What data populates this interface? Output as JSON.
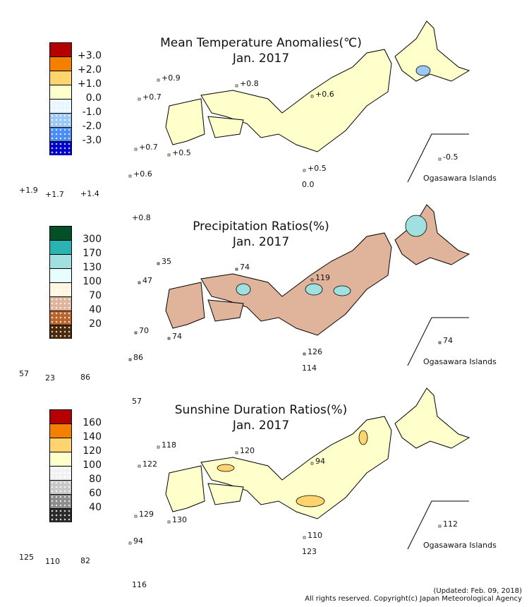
{
  "panels": [
    {
      "title": "Mean Temperature Anomalies(℃)",
      "subtitle": "Jan. 2017",
      "legend_colors": [
        "#b40000",
        "#f57f00",
        "#ffd36e",
        "#ffffcc",
        "#e8f6ff",
        "#9cc8f5",
        "#4a8cf5",
        "#0000cc"
      ],
      "legend_labels": [
        "+3.0",
        "+2.0",
        "+1.0",
        "0.0",
        "-1.0",
        "-2.0",
        "-3.0"
      ],
      "base_fill": "#ffffcc",
      "accent_fill": "#9cc8f5",
      "stations": [
        "+0.9",
        "+0.8",
        "+0.7",
        "+0.6",
        "+0.7",
        "+0.5",
        "+0.5",
        "0.0",
        "+1.9",
        "+1.7",
        "+1.4",
        "+0.6",
        "+0.8",
        "-0.5"
      ],
      "inset_label": "Ogasawara Islands"
    },
    {
      "title": "Precipitation Ratios(%)",
      "subtitle": "Jan. 2017",
      "legend_colors": [
        "#035028",
        "#2ab3b3",
        "#a0e0e0",
        "#e8fdfd",
        "#fff6e0",
        "#e0b49a",
        "#b8642c",
        "#4a2a0a"
      ],
      "legend_labels": [
        "300",
        "170",
        "130",
        "100",
        "70",
        "40",
        "20"
      ],
      "base_fill": "#e0b49a",
      "accent_fill": "#a0e0e0",
      "stations": [
        "35",
        "74",
        "47",
        "119",
        "70",
        "74",
        "126",
        "114",
        "57",
        "23",
        "86",
        "86",
        "57",
        "74"
      ],
      "inset_label": "Ogasawara Islands"
    },
    {
      "title": "Sunshine Duration Ratios(%)",
      "subtitle": "Jan. 2017",
      "legend_colors": [
        "#b40000",
        "#f57f00",
        "#ffd36e",
        "#ffffcc",
        "#f2f2f2",
        "#c8c8c8",
        "#8c8c8c",
        "#2a2a2a"
      ],
      "legend_labels": [
        "160",
        "140",
        "120",
        "100",
        "80",
        "60",
        "40"
      ],
      "base_fill": "#ffffcc",
      "accent_fill": "#ffd36e",
      "stations": [
        "118",
        "120",
        "122",
        "94",
        "129",
        "130",
        "110",
        "123",
        "125",
        "110",
        "82",
        "94",
        "116",
        "112"
      ],
      "inset_label": "Ogasawara Islands"
    }
  ],
  "footer": {
    "updated": "(Updated: Feb. 09, 2018)",
    "copyright": "All rights reserved. Copyright(c) Japan Meteorological Agency"
  }
}
